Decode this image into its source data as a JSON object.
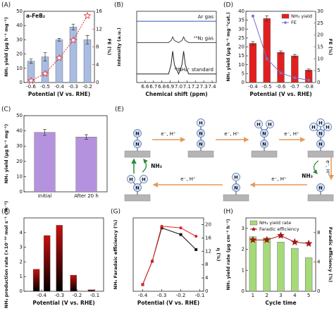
{
  "chart_data": [
    {
      "panel": "(A)",
      "type": "bar",
      "subtitle": "a-FeB₂",
      "x_label": "Potential (V vs. RHE)",
      "y_label": "NH₃ yield (μg h⁻¹ mg⁻¹)",
      "y2_label": "FE (%)",
      "categories": [
        "-0.6",
        "-0.5",
        "-0.4",
        "-0.3",
        "-0.2"
      ],
      "ylim": [
        0,
        50
      ],
      "yticks": [
        0,
        10,
        20,
        30,
        40,
        50
      ],
      "y2lim": [
        0,
        16
      ],
      "y2ticks": [
        0,
        4,
        8,
        12,
        16
      ],
      "series": [
        {
          "type": "bar",
          "color": "#a9bde3",
          "values": [
            15,
            18,
            30,
            39,
            30
          ],
          "errors": [
            1.5,
            3,
            1,
            2,
            3
          ]
        },
        {
          "type": "line",
          "color": "#e03030",
          "axis": "y2",
          "marker": "star",
          "values": [
            0.4,
            2,
            5.5,
            9.5,
            15
          ]
        }
      ]
    },
    {
      "panel": "(B)",
      "type": "spectrum",
      "x_label": "Chemical shift (ppm)",
      "y_label": "Intensity (a.u.)",
      "x": [
        6.5,
        6.88,
        6.91,
        6.93,
        6.95,
        7.0,
        7.04,
        7.06,
        7.08,
        7.12,
        7.45
      ],
      "xlim": [
        6.5,
        7.45
      ],
      "xticks": [
        6.6,
        6.7,
        6.8,
        6.9,
        {
          "value": 7,
          "label": "7.0"
        },
        7.1,
        7.2,
        7.3,
        7.4
      ],
      "ylim": [
        0,
        10
      ],
      "series": [
        {
          "name": "Ar gas",
          "color": "#3050c0",
          "values": [
            8.6,
            8.6,
            8.6,
            8.6,
            8.6,
            8.6,
            8.6,
            8.6,
            8.6,
            8.6,
            8.6
          ]
        },
        {
          "name": "¹⁵N₂ gas",
          "color": "#444444",
          "values": [
            5.6,
            5.6,
            5.9,
            6.4,
            5.9,
            5.6,
            5.9,
            6.4,
            5.9,
            5.6,
            5.6
          ]
        },
        {
          "name": "¹⁵NH₄⁺ standard",
          "color": "#222222",
          "values": [
            1.2,
            1.2,
            2.5,
            4.4,
            2.5,
            1.2,
            2.5,
            4.4,
            2.5,
            1.2,
            1.2
          ]
        }
      ]
    },
    {
      "panel": "(C)",
      "type": "bar",
      "y_label": "NH₃ yield (μg h⁻¹ mg⁻¹)",
      "categories": [
        "Initial",
        "After 20 h"
      ],
      "ylim": [
        0,
        50
      ],
      "yticks": [
        0,
        10,
        20,
        30,
        40,
        50
      ],
      "series": [
        {
          "type": "bar",
          "color": "#b592de",
          "values": [
            39,
            36
          ],
          "errors": [
            2,
            1.5
          ]
        }
      ]
    },
    {
      "panel": "(D)",
      "type": "bar",
      "x_label": "Potential (V vs. RHE)",
      "y_label": "NH₃ yield (μg h⁻¹ mg⁻¹cat.)",
      "y2_label": "FE (%)",
      "categories": [
        "-0.4",
        "-0.5",
        "-0.6",
        "-0.7",
        "-0.8"
      ],
      "legend": "upper right",
      "ylim": [
        0,
        40
      ],
      "yticks": [
        0,
        5,
        10,
        15,
        20,
        25,
        30,
        35,
        40
      ],
      "y2lim": [
        0,
        30
      ],
      "y2ticks": [
        0,
        5,
        10,
        15,
        20,
        25,
        30
      ],
      "series": [
        {
          "name": "NH₃ yield",
          "type": "bar",
          "color": "#e02020",
          "values": [
            22,
            36,
            17,
            15,
            7
          ],
          "errors": [
            1,
            1.5,
            0.8,
            0.8,
            0.6
          ]
        },
        {
          "name": "FE",
          "type": "line",
          "color": "#7b6fc9",
          "axis": "y2",
          "marker": "circle",
          "values": [
            28,
            10,
            4,
            2,
            1
          ]
        }
      ]
    },
    {
      "panel": "(F)",
      "type": "bar",
      "x_label": "Potential (V vs. RHE)",
      "y_label": "NH₃ production rate (×10⁻¹⁰ mol s⁻¹ cm⁻²)",
      "x": [
        -0.43,
        -0.37,
        -0.3,
        -0.22,
        -0.12
      ],
      "xlim": [
        -0.5,
        -0.05
      ],
      "xticks": [
        -0.4,
        -0.3,
        -0.2,
        -0.1
      ],
      "ylim": [
        0,
        5
      ],
      "yticks": [
        0,
        1,
        2,
        3,
        4
      ],
      "series": [
        {
          "type": "bar",
          "color": "#c81010",
          "gradient_to": "#000000",
          "values": [
            1.5,
            3.8,
            4.5,
            1.1,
            0.1
          ]
        }
      ]
    },
    {
      "panel": "(G)",
      "type": "line",
      "x_label": "Potential (V vs. RHE)",
      "y_label": "NH₃ Faradaic efficiency (%)",
      "y2_label": "η (%)",
      "x": [
        -0.4,
        -0.35,
        -0.3,
        -0.2,
        -0.12
      ],
      "xlim": [
        -0.45,
        -0.08
      ],
      "xticks": [
        -0.4,
        -0.3,
        -0.2,
        -0.1
      ],
      "y2lim": [
        0,
        22
      ],
      "y2ticks": [
        0,
        4,
        8,
        12,
        16,
        20
      ],
      "series": [
        {
          "type": "line",
          "color": "#111111",
          "axis": "y2",
          "marker": "square",
          "values": [
            2,
            9,
            19,
            17,
            12.5
          ]
        },
        {
          "type": "line",
          "color": "#e02020",
          "axis": "y2",
          "marker": "circle",
          "values": [
            2,
            9,
            19.5,
            19,
            16.5
          ]
        }
      ]
    },
    {
      "panel": "(H)",
      "type": "bar",
      "x_label": "Cycle time",
      "y_label": "NH₃ yield rate (μg cm⁻² h⁻¹)",
      "y2_label": "Faradic efficiency (%)",
      "categories": [
        "1",
        "2",
        "3",
        "4",
        "5"
      ],
      "legend": "upper left",
      "ylim": [
        0,
        3.5
      ],
      "yticks": [
        0,
        1,
        2,
        3
      ],
      "y2lim": [
        0,
        10
      ],
      "y2ticks": [
        0,
        4,
        8
      ],
      "series": [
        {
          "name": "NH₃ yield rate",
          "type": "bar",
          "color": "#a6d97a",
          "values": [
            2.6,
            2.55,
            2.35,
            2.05,
            1.6
          ]
        },
        {
          "name": "Faradic efficiency",
          "type": "line",
          "color": "#a01818",
          "axis": "y2",
          "marker": "star",
          "values": [
            7,
            7,
            7.6,
            6.7,
            6.5
          ]
        }
      ]
    }
  ],
  "diagram": {
    "panel": "(E)",
    "atoms": [
      "N",
      "H"
    ],
    "steps": [
      "e⁻, H⁺",
      "e⁻, H⁺",
      "e⁻, H⁺",
      "e⁻, H⁺",
      "e⁻, H⁺",
      "e⁻, H⁺"
    ],
    "product": "NH₃"
  }
}
